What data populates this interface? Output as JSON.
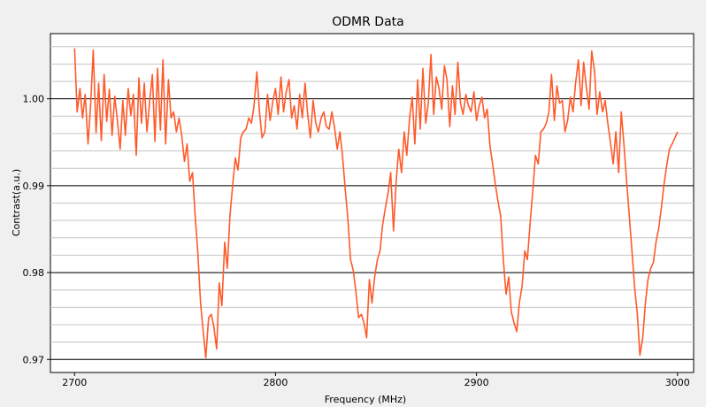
{
  "chart_data": {
    "type": "line",
    "title": "ODMR Data",
    "xlabel": "Frequency (MHz)",
    "ylabel": "Contrast(a.u.)",
    "xlim": [
      2688,
      3008
    ],
    "ylim": [
      0.9685,
      1.0075
    ],
    "x_ticks": [
      2700,
      2800,
      2900,
      3000
    ],
    "y_ticks": [
      0.97,
      0.98,
      0.99,
      1.0
    ],
    "y_tick_labels": [
      "0.97",
      "0.98",
      "0.99",
      "1.00"
    ],
    "y_minor_step": 0.002,
    "grid": true,
    "series": [
      {
        "color": "#ff5a2a",
        "x": [
          2700,
          2701.3,
          2702.7,
          2704,
          2705.3,
          2706.7,
          2708,
          2709.3,
          2710.7,
          2712,
          2713.3,
          2714.7,
          2716,
          2717.3,
          2718.7,
          2720,
          2721.3,
          2722.7,
          2724,
          2725.3,
          2726.7,
          2728,
          2729.3,
          2730.7,
          2732,
          2733.3,
          2734.7,
          2736,
          2737.3,
          2738.7,
          2740,
          2741.3,
          2742.7,
          2744,
          2745.3,
          2746.7,
          2748,
          2749.3,
          2750.7,
          2752,
          2753.3,
          2754.7,
          2756,
          2757.3,
          2758.7,
          2760,
          2761.3,
          2762.7,
          2764,
          2765.3,
          2766.7,
          2768,
          2769.3,
          2770.7,
          2772,
          2773.3,
          2774.7,
          2776,
          2777.3,
          2778.7,
          2780,
          2781.3,
          2782.7,
          2784,
          2785.3,
          2786.7,
          2788,
          2789.3,
          2790.7,
          2792,
          2793.3,
          2794.7,
          2796,
          2797.3,
          2798.7,
          2800,
          2801.3,
          2802.7,
          2804,
          2805.3,
          2806.7,
          2808,
          2809.3,
          2810.7,
          2812,
          2813.3,
          2814.7,
          2816,
          2817.3,
          2818.7,
          2820,
          2821.3,
          2822.7,
          2824,
          2825.3,
          2826.7,
          2828,
          2829.3,
          2830.7,
          2832,
          2833.3,
          2834.7,
          2836,
          2837.3,
          2838.7,
          2840,
          2841.3,
          2842.7,
          2844,
          2845.3,
          2846.7,
          2848,
          2849.3,
          2850.7,
          2852,
          2853.3,
          2854.7,
          2856,
          2857.3,
          2858.7,
          2860,
          2861.3,
          2862.7,
          2864,
          2865.3,
          2866.7,
          2868,
          2869.3,
          2870.7,
          2872,
          2873.3,
          2874.7,
          2876,
          2877.3,
          2878.7,
          2880,
          2881.3,
          2882.7,
          2884,
          2885.3,
          2886.7,
          2888,
          2889.3,
          2890.7,
          2892,
          2893.3,
          2894.7,
          2896,
          2897.3,
          2898.7,
          2900,
          2901.3,
          2902.7,
          2904,
          2905.3,
          2906.7,
          2908,
          2909.3,
          2910.7,
          2912,
          2913.3,
          2914.7,
          2916,
          2917.3,
          2918.7,
          2920,
          2921.3,
          2922.7,
          2924,
          2925.3,
          2926.7,
          2928,
          2929.3,
          2930.7,
          2932,
          2933.3,
          2934.7,
          2936,
          2937.3,
          2938.7,
          2940,
          2941.3,
          2942.7,
          2944,
          2945.3,
          2946.7,
          2948,
          2949.3,
          2950.7,
          2952,
          2953.3,
          2954.7,
          2956,
          2957.3,
          2958.7,
          2960,
          2961.3,
          2962.7,
          2964,
          2965.3,
          2966.7,
          2968,
          2969.3,
          2970.7,
          2972,
          2973.3,
          2974.7,
          2976,
          2977.3,
          2978.7,
          2980,
          2981.3,
          2982.7,
          2984,
          2985.3,
          2986.7,
          2988,
          2989.3,
          2990.7,
          2992,
          2993.3,
          2994.7,
          2996,
          2997.3,
          2998.7,
          3000
        ],
        "y": [
          1.0058,
          0.9985,
          1.0012,
          0.9978,
          1.0005,
          0.9948,
          0.9992,
          1.0056,
          0.9961,
          1.0018,
          0.9952,
          1.0028,
          0.9974,
          1.0011,
          0.9958,
          1.0003,
          0.9975,
          0.9942,
          0.9998,
          0.9958,
          1.0012,
          0.9981,
          1.0005,
          0.9935,
          1.0024,
          0.9972,
          1.0018,
          0.9962,
          0.9995,
          1.0028,
          0.9951,
          1.0035,
          0.9964,
          1.0045,
          0.9948,
          1.0022,
          0.9978,
          0.9985,
          0.9962,
          0.9978,
          0.9958,
          0.9928,
          0.9948,
          0.9905,
          0.9915,
          0.9865,
          0.9825,
          0.9765,
          0.9732,
          0.9702,
          0.9748,
          0.9752,
          0.9738,
          0.9712,
          0.9788,
          0.9762,
          0.9835,
          0.9805,
          0.9865,
          0.9902,
          0.9932,
          0.9918,
          0.9955,
          0.9962,
          0.9965,
          0.9978,
          0.9972,
          0.9992,
          1.0031,
          0.9985,
          0.9955,
          0.9962,
          1.0005,
          0.9975,
          0.9998,
          1.0012,
          0.9982,
          1.0025,
          0.9985,
          1.0008,
          1.0022,
          0.9978,
          0.9992,
          0.9965,
          1.0005,
          0.9978,
          1.0018,
          0.9982,
          0.9955,
          0.9998,
          0.9972,
          0.9962,
          0.9978,
          0.9985,
          0.9968,
          0.9965,
          0.9985,
          0.9968,
          0.9942,
          0.9962,
          0.9935,
          0.9895,
          0.9862,
          0.9815,
          0.9802,
          0.9778,
          0.9748,
          0.9752,
          0.9742,
          0.9725,
          0.9792,
          0.9765,
          0.9795,
          0.9815,
          0.9825,
          0.9855,
          0.9875,
          0.9892,
          0.9915,
          0.9848,
          0.9905,
          0.9942,
          0.9915,
          0.9962,
          0.9935,
          0.9978,
          1.0002,
          0.9948,
          1.0022,
          0.9965,
          1.0035,
          0.9972,
          0.9995,
          1.0051,
          0.9982,
          1.0025,
          1.0012,
          0.9988,
          1.0038,
          1.0022,
          0.9968,
          1.0015,
          0.9982,
          1.0042,
          0.9995,
          0.9982,
          1.0005,
          0.9992,
          0.9985,
          1.0008,
          0.9975,
          0.9992,
          1.0002,
          0.9978,
          0.9988,
          0.9945,
          0.9925,
          0.9902,
          0.9882,
          0.9865,
          0.9815,
          0.9775,
          0.9795,
          0.9755,
          0.9742,
          0.9732,
          0.9765,
          0.9785,
          0.9825,
          0.9815,
          0.9858,
          0.9895,
          0.9935,
          0.9925,
          0.9962,
          0.9965,
          0.9972,
          0.9985,
          1.0028,
          0.9975,
          1.0015,
          0.9995,
          0.9998,
          0.9962,
          0.9975,
          1.0002,
          0.9985,
          1.0018,
          1.0045,
          0.9992,
          1.0042,
          1.0012,
          0.9988,
          1.0055,
          1.0032,
          0.9982,
          1.0008,
          0.9985,
          0.9998,
          0.9972,
          0.9948,
          0.9925,
          0.9962,
          0.9915,
          0.9985,
          0.9948,
          0.9905,
          0.9865,
          0.9825,
          0.9782,
          0.9752,
          0.9705,
          0.9725,
          0.9765,
          0.9792,
          0.9805,
          0.9812,
          0.9835,
          0.9852,
          0.9875,
          0.9902,
          0.9925,
          0.9942,
          0.9948,
          0.9955,
          0.9962
        ]
      }
    ]
  }
}
